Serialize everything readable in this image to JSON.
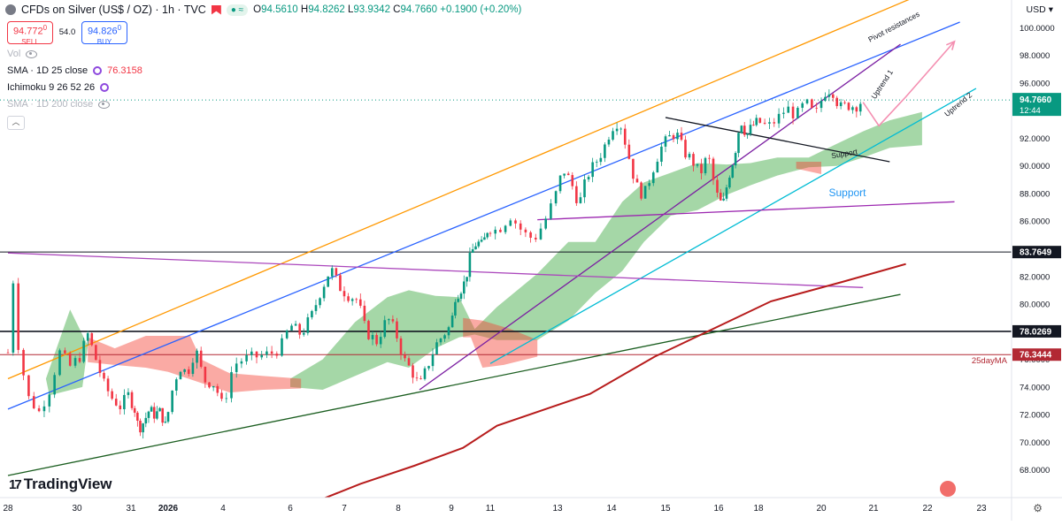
{
  "header": {
    "title": "CFDs on Silver (US$ / OZ) · 1h · TVC",
    "ohlc": [
      {
        "label": "O",
        "value": "94.5610"
      },
      {
        "label": "H",
        "value": "94.8262"
      },
      {
        "label": "L",
        "value": "93.9342"
      },
      {
        "label": "C",
        "value": "94.7660"
      }
    ],
    "change": "+0.1900 (+0.20%)",
    "currency": "USD"
  },
  "trade": {
    "sell_price_main": "94.772",
    "sell_price_small": "0",
    "sell_label": "SELL",
    "spread": "54.0",
    "buy_price_main": "94.826",
    "buy_price_small": "0",
    "buy_label": "BUY"
  },
  "indicators": [
    {
      "text": "Vol",
      "value": ""
    },
    {
      "text": "SMA · 1D 25 close",
      "value": "76.3158"
    },
    {
      "text": "Ichimoku 9 26 52 26",
      "value": ""
    },
    {
      "text": "SMA · 1D 200 close",
      "value": ""
    }
  ],
  "branding": "TradingView",
  "chart_data": {
    "type": "line",
    "y_ticks": [
      "68.0000",
      "70.0000",
      "72.0000",
      "74.0000",
      "76.0000",
      "78.0000",
      "80.0000",
      "82.0000",
      "84.0000",
      "86.0000",
      "88.0000",
      "90.0000",
      "92.0000",
      "94.0000",
      "96.0000",
      "98.0000",
      "100.0000"
    ],
    "y_range": [
      66.0,
      102.0
    ],
    "x_ticks": [
      {
        "label": "28",
        "t": 0
      },
      {
        "label": "30",
        "t": 1
      },
      {
        "label": "31",
        "t": 2
      },
      {
        "label": "2026",
        "t": 3
      },
      {
        "label": "4",
        "t": 4
      },
      {
        "label": "6",
        "t": 5
      },
      {
        "label": "7",
        "t": 6
      },
      {
        "label": "8",
        "t": 7
      },
      {
        "label": "9",
        "t": 8
      },
      {
        "label": "11",
        "t": 9
      },
      {
        "label": "13",
        "t": 10
      },
      {
        "label": "14",
        "t": 11
      },
      {
        "label": "15",
        "t": 12
      },
      {
        "label": "16",
        "t": 13
      },
      {
        "label": "18",
        "t": 14
      },
      {
        "label": "20",
        "t": 15
      },
      {
        "label": "21",
        "t": 16
      },
      {
        "label": "22",
        "t": 17
      },
      {
        "label": "23",
        "t": 18
      }
    ],
    "price_path": [
      [
        0,
        76.5
      ],
      [
        0.05,
        83.8
      ],
      [
        0.12,
        78.0
      ],
      [
        0.2,
        75.5
      ],
      [
        0.3,
        73.2
      ],
      [
        0.45,
        72.2
      ],
      [
        0.6,
        73.8
      ],
      [
        0.75,
        76.5
      ],
      [
        0.9,
        75.5
      ],
      [
        1.05,
        76.2
      ],
      [
        1.2,
        77.8
      ],
      [
        1.35,
        76.0
      ],
      [
        1.5,
        74.2
      ],
      [
        1.65,
        73.2
      ],
      [
        1.8,
        72.6
      ],
      [
        1.95,
        73.4
      ],
      [
        2.1,
        72.4
      ],
      [
        2.2,
        71.0
      ],
      [
        2.35,
        71.5
      ],
      [
        2.5,
        72.4
      ],
      [
        2.6,
        72.0
      ],
      [
        2.8,
        72.2
      ],
      [
        2.95,
        71.0
      ],
      [
        3.05,
        73.4
      ],
      [
        3.2,
        75.5
      ],
      [
        3.35,
        75.0
      ],
      [
        3.5,
        76.8
      ],
      [
        3.65,
        74.5
      ],
      [
        3.85,
        74.2
      ],
      [
        4.0,
        72.5
      ],
      [
        4.15,
        75.6
      ],
      [
        4.3,
        76.0
      ],
      [
        4.5,
        76.2
      ],
      [
        4.7,
        76.4
      ],
      [
        4.85,
        76.8
      ],
      [
        5.0,
        78.5
      ],
      [
        5.2,
        77.8
      ],
      [
        5.4,
        79.2
      ],
      [
        5.55,
        80.8
      ],
      [
        5.75,
        82.6
      ],
      [
        5.9,
        81.3
      ],
      [
        6.05,
        80.7
      ],
      [
        6.25,
        80.3
      ],
      [
        6.4,
        78.0
      ],
      [
        6.6,
        77.3
      ],
      [
        6.8,
        79.0
      ],
      [
        6.95,
        78.0
      ],
      [
        7.1,
        76.0
      ],
      [
        7.25,
        75.2
      ],
      [
        7.4,
        74.0
      ],
      [
        7.55,
        75.5
      ],
      [
        7.7,
        77.0
      ],
      [
        7.85,
        77.8
      ],
      [
        8.0,
        78.5
      ],
      [
        8.1,
        80.6
      ],
      [
        8.2,
        80.9
      ],
      [
        8.35,
        81.6
      ],
      [
        8.5,
        83.6
      ],
      [
        8.65,
        84.5
      ],
      [
        8.8,
        84.2
      ],
      [
        8.95,
        85.6
      ],
      [
        9.1,
        85.3
      ],
      [
        9.3,
        86.4
      ],
      [
        9.5,
        85.1
      ],
      [
        9.65,
        84.7
      ],
      [
        9.8,
        85.9
      ],
      [
        9.95,
        87.6
      ],
      [
        10.1,
        89.8
      ],
      [
        10.25,
        88.8
      ],
      [
        10.4,
        87.2
      ],
      [
        10.55,
        89.3
      ],
      [
        10.7,
        90.2
      ],
      [
        10.85,
        91.2
      ],
      [
        11.0,
        92.8
      ],
      [
        11.15,
        93.3
      ],
      [
        11.3,
        91.0
      ],
      [
        11.45,
        88.6
      ],
      [
        11.6,
        87.8
      ],
      [
        11.75,
        89.6
      ],
      [
        11.9,
        91.2
      ],
      [
        12.05,
        92.0
      ],
      [
        12.2,
        92.4
      ],
      [
        12.35,
        91.0
      ],
      [
        12.5,
        90.4
      ],
      [
        12.65,
        89.4
      ],
      [
        12.8,
        90.8
      ],
      [
        12.95,
        88.0
      ],
      [
        13.1,
        87.0
      ],
      [
        13.25,
        89.2
      ],
      [
        13.4,
        90.8
      ],
      [
        13.55,
        93.4
      ],
      [
        13.7,
        92.2
      ],
      [
        13.85,
        92.9
      ],
      [
        14.0,
        93.2
      ],
      [
        14.15,
        92.8
      ],
      [
        14.3,
        93.4
      ],
      [
        14.45,
        94.2
      ],
      [
        14.6,
        93.6
      ],
      [
        14.75,
        94.6
      ],
      [
        14.9,
        93.6
      ],
      [
        15.05,
        95.3
      ],
      [
        15.2,
        95.6
      ],
      [
        15.35,
        94.2
      ],
      [
        15.5,
        94.4
      ],
      [
        15.65,
        94.3
      ],
      [
        15.8,
        94.77
      ]
    ],
    "current_price": "94.7660",
    "current_time": "12:44",
    "horizontal_levels": [
      {
        "value": 83.7649,
        "label": "83.7649",
        "color": "#131722"
      },
      {
        "value": 78.0269,
        "label": "78.0269",
        "color": "#131722"
      },
      {
        "value": 76.3444,
        "label": "76.3444",
        "color": "#b22833"
      }
    ],
    "sma25_label": "25dayMA",
    "sma200": [
      [
        5.4,
        65.6
      ],
      [
        6.3,
        67.0
      ],
      [
        7.3,
        68.3
      ],
      [
        8.3,
        69.6
      ],
      [
        9.1,
        71.2
      ],
      [
        10.6,
        73.5
      ],
      [
        11.8,
        76.2
      ],
      [
        13.0,
        78.4
      ],
      [
        14.2,
        80.2
      ],
      [
        15.4,
        81.6
      ],
      [
        16.6,
        82.9
      ]
    ],
    "sma25": [
      [
        5.9,
        66.0
      ],
      [
        7.2,
        67.8
      ],
      [
        8.6,
        69.2
      ],
      [
        9.8,
        71.4
      ],
      [
        11.0,
        73.4
      ],
      [
        12.4,
        75.6
      ],
      [
        13.8,
        77.5
      ],
      [
        15.0,
        78.8
      ],
      [
        16.0,
        79.8
      ]
    ],
    "trendlines": [
      {
        "name": "pivot-resistance",
        "color": "#ff9800",
        "from": [
          0,
          74.6
        ],
        "to": [
          17.0,
          102.6
        ],
        "label": "Pivot resistances"
      },
      {
        "name": "channel-top",
        "color": "#2962ff",
        "from": [
          0,
          72.4
        ],
        "to": [
          17.6,
          100.4
        ],
        "label": ""
      },
      {
        "name": "uptrend-1",
        "color": "#7b1fa2",
        "from": [
          7.4,
          73.8
        ],
        "to": [
          16.5,
          98.8
        ],
        "label": "Uptrend 1"
      },
      {
        "name": "uptrend-2",
        "color": "#00bcd4",
        "from": [
          9.0,
          75.7
        ],
        "to": [
          17.9,
          95.6
        ],
        "label": "Uptrend 2"
      },
      {
        "name": "falling-support",
        "color": "#131722",
        "from": [
          12.0,
          93.5
        ],
        "to": [
          16.3,
          90.3
        ],
        "label": "Support"
      },
      {
        "name": "support-violet",
        "color": "#9c27b0",
        "from": [
          9.7,
          86.1
        ],
        "to": [
          17.5,
          87.4
        ],
        "label": "Support"
      },
      {
        "name": "long-violet",
        "color": "#ab47bc",
        "from": [
          0,
          83.7
        ],
        "to": [
          15.8,
          81.2
        ],
        "label": ""
      },
      {
        "name": "long-green",
        "color": "#1b5e20",
        "from": [
          0,
          67.6
        ],
        "to": [
          16.5,
          80.7
        ],
        "label": ""
      }
    ],
    "projection": [
      [
        15.8,
        94.6
      ],
      [
        16.1,
        92.9
      ],
      [
        16.6,
        95.0
      ],
      [
        17.5,
        99.0
      ]
    ],
    "cloud_green": [
      [
        [
          0.55,
          74.6
        ],
        [
          0.9,
          79.6
        ],
        [
          1.2,
          77.0
        ],
        [
          1.1,
          74.0
        ],
        [
          0.6,
          73.4
        ]
      ],
      [
        [
          5.0,
          74.6
        ],
        [
          5.6,
          76.0
        ],
        [
          6.2,
          78.7
        ],
        [
          6.8,
          80.5
        ],
        [
          7.2,
          81.0
        ],
        [
          7.7,
          80.6
        ],
        [
          8.2,
          80.5
        ],
        [
          8.6,
          78.2
        ],
        [
          9.1,
          79.8
        ],
        [
          9.7,
          82.2
        ],
        [
          10.2,
          84.5
        ],
        [
          10.7,
          84.5
        ],
        [
          11.2,
          87.4
        ],
        [
          11.6,
          88.8
        ],
        [
          12.1,
          89.5
        ],
        [
          12.6,
          90.2
        ],
        [
          13.2,
          90.1
        ],
        [
          13.8,
          90.2
        ],
        [
          14.3,
          90.6
        ],
        [
          14.8,
          90.6
        ],
        [
          15.3,
          91.6
        ],
        [
          15.8,
          92.5
        ],
        [
          16.3,
          93.3
        ],
        [
          16.9,
          93.9
        ],
        [
          16.9,
          91.5
        ],
        [
          16.3,
          91.3
        ],
        [
          15.8,
          90.6
        ],
        [
          15.3,
          90.0
        ],
        [
          14.8,
          89.9
        ],
        [
          14.3,
          89.3
        ],
        [
          13.8,
          88.6
        ],
        [
          13.2,
          87.9
        ],
        [
          12.6,
          86.8
        ],
        [
          12.1,
          86.4
        ],
        [
          11.6,
          84.5
        ],
        [
          11.2,
          82.4
        ],
        [
          10.7,
          80.8
        ],
        [
          10.2,
          78.8
        ],
        [
          9.7,
          77.4
        ],
        [
          9.1,
          77.4
        ],
        [
          8.6,
          77.8
        ],
        [
          8.2,
          77.6
        ],
        [
          7.7,
          76.8
        ],
        [
          7.2,
          75.4
        ],
        [
          6.8,
          75.8
        ],
        [
          6.2,
          74.8
        ],
        [
          5.6,
          73.8
        ],
        [
          5.0,
          74.0
        ]
      ]
    ],
    "cloud_red": [
      [
        [
          1.2,
          77.6
        ],
        [
          1.7,
          76.8
        ],
        [
          2.4,
          77.7
        ],
        [
          3.4,
          77.7
        ],
        [
          3.6,
          76.0
        ],
        [
          4.1,
          75.0
        ],
        [
          4.6,
          74.8
        ],
        [
          5.2,
          74.6
        ],
        [
          5.2,
          73.9
        ],
        [
          4.6,
          73.8
        ],
        [
          4.1,
          73.6
        ],
        [
          3.6,
          74.3
        ],
        [
          3.0,
          75.1
        ],
        [
          2.4,
          75.4
        ],
        [
          1.7,
          75.6
        ],
        [
          1.2,
          75.8
        ]
      ],
      [
        [
          8.3,
          79.0
        ],
        [
          8.8,
          78.8
        ],
        [
          9.3,
          78.2
        ],
        [
          9.7,
          77.4
        ],
        [
          9.7,
          76.2
        ],
        [
          9.2,
          75.6
        ],
        [
          8.8,
          75.4
        ],
        [
          8.5,
          77.6
        ],
        [
          8.3,
          77.6
        ]
      ],
      [
        [
          14.6,
          90.3
        ],
        [
          15.0,
          90.3
        ],
        [
          15.0,
          89.4
        ],
        [
          14.6,
          89.8
        ]
      ]
    ],
    "annotations": [
      {
        "text": "Support",
        "t": 15.5,
        "y": 87.8,
        "color": "#2196f3",
        "size": 12,
        "rotate": 0
      },
      {
        "text": "Support",
        "t": 15.45,
        "y": 90.7,
        "color": "#131722",
        "size": 8.5,
        "rotate": -10
      },
      {
        "text": "Uptrend 1",
        "t": 16.2,
        "y": 95.8,
        "color": "#131722",
        "size": 8.5,
        "rotate": -57
      },
      {
        "text": "Uptrend 2",
        "t": 17.6,
        "y": 94.3,
        "color": "#131722",
        "size": 8.5,
        "rotate": -40
      },
      {
        "text": "Pivot resistances",
        "t": 16.4,
        "y": 99.9,
        "color": "#131722",
        "size": 8.5,
        "rotate": -28
      }
    ]
  }
}
